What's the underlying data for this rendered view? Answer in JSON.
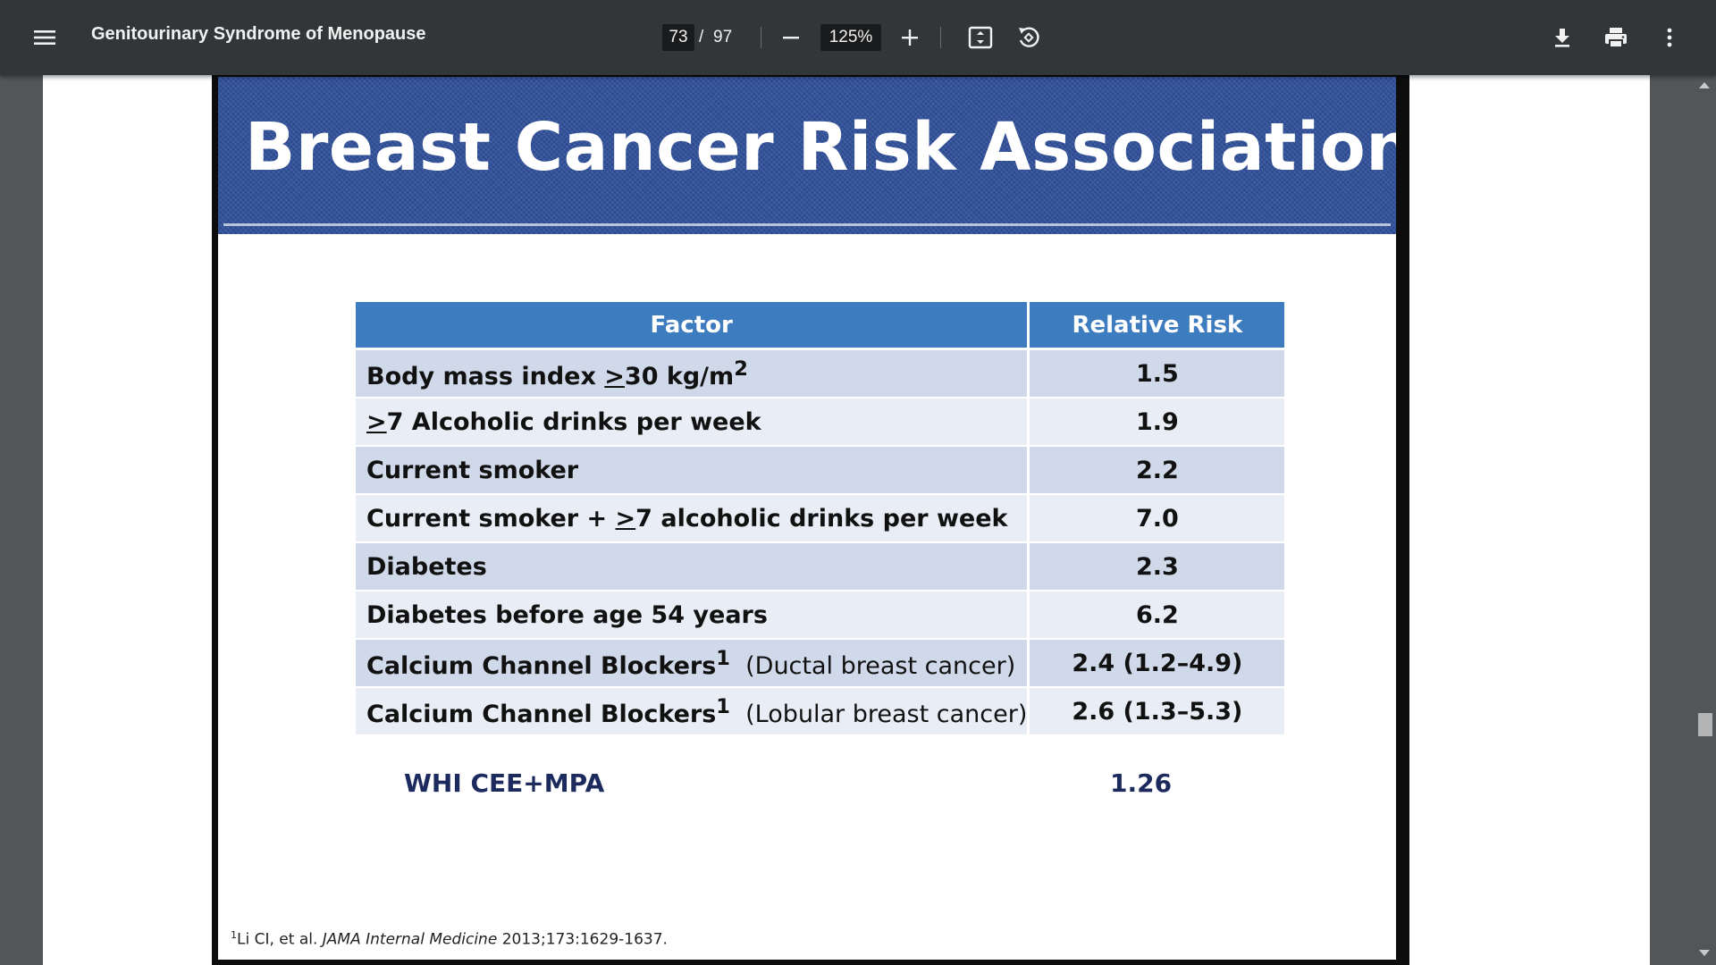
{
  "toolbar": {
    "menu_icon": "hamburger-menu-icon",
    "title": "Genitourinary Syndrome of Menopause",
    "page_current": "73",
    "page_separator": "/",
    "page_total": "97",
    "zoom_out_icon": "minus-icon",
    "zoom_level": "125%",
    "zoom_in_icon": "plus-icon",
    "fit_page_icon": "fit-to-page-icon",
    "rotate_icon": "rotate-counterclockwise-icon",
    "download_icon": "download-icon",
    "print_icon": "print-icon",
    "more_icon": "more-vertical-icon"
  },
  "slide": {
    "title": "Breast Cancer Risk Associations",
    "table": {
      "headers": [
        "Factor",
        "Relative Risk"
      ],
      "rows": [
        {
          "factor_prefix": "Body mass index ",
          "factor_underlined": ">",
          "factor_suffix": "30 kg/m",
          "factor_sup": "2",
          "factor_note": "",
          "rr": "1.5"
        },
        {
          "factor_prefix": "",
          "factor_underlined": ">",
          "factor_suffix": "7 Alcoholic drinks per week",
          "factor_sup": "",
          "factor_note": "",
          "rr": "1.9"
        },
        {
          "factor_prefix": "Current smoker",
          "factor_underlined": "",
          "factor_suffix": "",
          "factor_sup": "",
          "factor_note": "",
          "rr": "2.2"
        },
        {
          "factor_prefix": "Current smoker + ",
          "factor_underlined": ">",
          "factor_suffix": "7 alcoholic drinks per week",
          "factor_sup": "",
          "factor_note": "",
          "rr": "7.0"
        },
        {
          "factor_prefix": "Diabetes",
          "factor_underlined": "",
          "factor_suffix": "",
          "factor_sup": "",
          "factor_note": "",
          "rr": "2.3"
        },
        {
          "factor_prefix": "Diabetes before age 54 years",
          "factor_underlined": "",
          "factor_suffix": "",
          "factor_sup": "",
          "factor_note": "",
          "rr": "6.2"
        },
        {
          "factor_prefix": "Calcium Channel Blockers",
          "factor_underlined": "",
          "factor_suffix": "",
          "factor_sup": "1",
          "factor_note": "  (Ductal breast cancer)",
          "rr": "2.4 (1.2–4.9)"
        },
        {
          "factor_prefix": "Calcium Channel Blockers",
          "factor_underlined": "",
          "factor_suffix": "",
          "factor_sup": "1",
          "factor_note": "  (Lobular breast cancer)",
          "rr": "2.6 (1.3–5.3)"
        }
      ]
    },
    "whi_label": "WHI CEE+MPA",
    "whi_value": "1.26",
    "footnote": {
      "sup": "1",
      "authors": "Li CI, et al. ",
      "journal": "JAMA Internal Medicine",
      "citation": " 2013;173:1629-1637."
    }
  },
  "colors": {
    "toolbar_bg": "#323639",
    "viewer_bg": "#525659",
    "slide_header": "#2f4f9a",
    "table_header": "#3e7cc0",
    "row_odd": "#d0d9ea",
    "row_even": "#e9eef6",
    "whi_text": "#1c2a5e"
  }
}
